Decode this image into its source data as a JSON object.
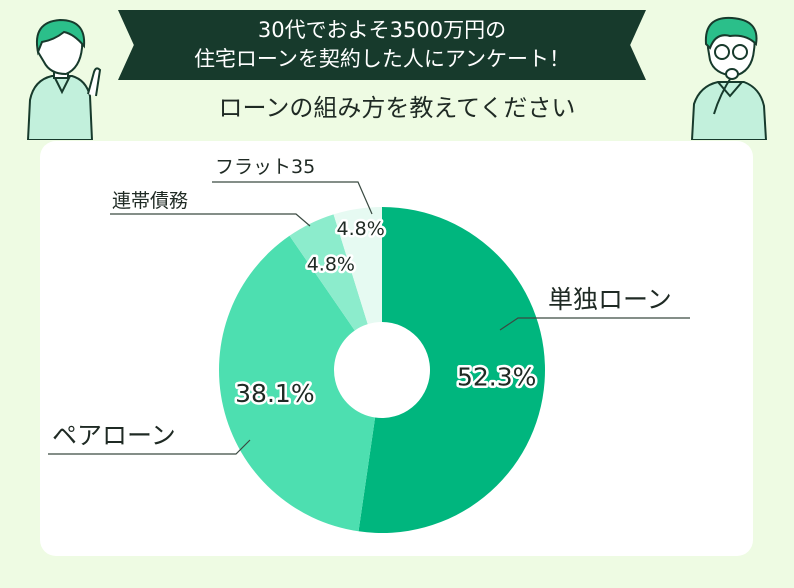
{
  "header": {
    "title_line1": "30代でおよそ3500万円の",
    "title_line2": "住宅ローンを契約した人にアンケート！",
    "subtitle": "ローンの組み方を教えてください"
  },
  "colors": {
    "background": "#eefbe3",
    "banner": "#173a2c",
    "single_loan": "#00b67e",
    "pair_loan": "#4ddfb0",
    "joint_debt": "#8ceccc",
    "flat35": "#e6faf2"
  },
  "chart_data": {
    "type": "pie",
    "donut": true,
    "slices": [
      {
        "label": "単独ローン",
        "value": 52.3,
        "value_label": "52.3%",
        "color": "#00b67e"
      },
      {
        "label": "ペアローン",
        "value": 38.1,
        "value_label": "38.1%",
        "color": "#4ddfb0"
      },
      {
        "label": "連帯債務",
        "value": 4.8,
        "value_label": "4.8%",
        "color": "#8ceccc"
      },
      {
        "label": "フラット35",
        "value": 4.8,
        "value_label": "4.8%",
        "color": "#e6faf2"
      }
    ]
  }
}
